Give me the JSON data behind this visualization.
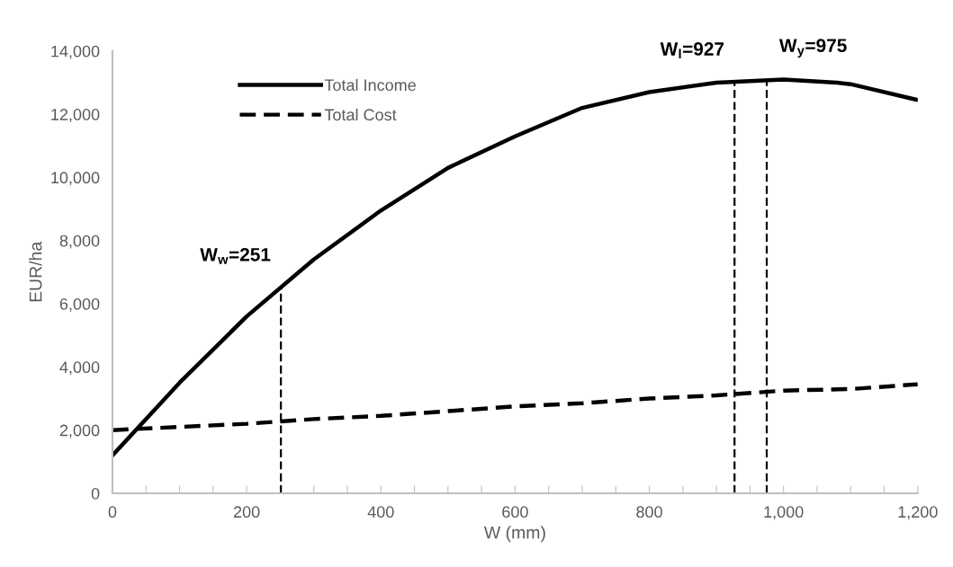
{
  "chart_data": {
    "type": "line",
    "xlabel": "W (mm)",
    "ylabel": "EUR/ha",
    "x": [
      0,
      100,
      200,
      300,
      400,
      500,
      600,
      700,
      800,
      900,
      1000,
      1080,
      1100,
      1200
    ],
    "series": [
      {
        "name": "Total Income",
        "color": "#000000",
        "line_style": "solid",
        "values": [
          1200,
          3500,
          5600,
          7400,
          8950,
          10300,
          11300,
          12200,
          12700,
          13000,
          13100,
          13000,
          12950,
          12450
        ]
      },
      {
        "name": "Total Cost",
        "color": "#000000",
        "line_style": "dashed",
        "values": [
          2000,
          2100,
          2200,
          2350,
          2450,
          2600,
          2750,
          2850,
          3000,
          3100,
          3250,
          3290,
          3300,
          3450
        ]
      }
    ],
    "xlim": [
      0,
      1200
    ],
    "ylim": [
      0,
      14000
    ],
    "xticks": [
      0,
      {
        "value": 50,
        "label": null
      },
      {
        "value": 100,
        "label": null
      },
      {
        "value": 150,
        "label": null
      },
      200,
      {
        "value": 250,
        "label": null
      },
      {
        "value": 300,
        "label": null
      },
      {
        "value": 350,
        "label": null
      },
      400,
      {
        "value": 450,
        "label": null
      },
      {
        "value": 500,
        "label": null
      },
      {
        "value": 550,
        "label": null
      },
      600,
      {
        "value": 650,
        "label": null
      },
      {
        "value": 700,
        "label": null
      },
      {
        "value": 750,
        "label": null
      },
      800,
      {
        "value": 850,
        "label": null
      },
      {
        "value": 900,
        "label": null
      },
      {
        "value": 950,
        "label": null
      },
      {
        "value": 1000,
        "label": "1,000"
      },
      {
        "value": 1050,
        "label": null
      },
      {
        "value": 1100,
        "label": null
      },
      {
        "value": 1150,
        "label": null
      },
      {
        "value": 1200,
        "label": "1,200"
      }
    ],
    "yticks": [
      0,
      {
        "value": 2000,
        "label": "2,000"
      },
      {
        "value": 4000,
        "label": "4,000"
      },
      {
        "value": 6000,
        "label": "6,000"
      },
      {
        "value": 8000,
        "label": "8,000"
      },
      {
        "value": 10000,
        "label": "10,000"
      },
      {
        "value": 12000,
        "label": "12,000"
      },
      {
        "value": 14000,
        "label": "14,000"
      }
    ],
    "ref_lines": [
      {
        "axis": "x",
        "value": 251,
        "label": "W$_{w}$=251",
        "color": "#000000",
        "line_style": "dashed"
      },
      {
        "axis": "x",
        "value": 927,
        "label": "W$_{l}$=927",
        "color": "#000000",
        "line_style": "dashed"
      },
      {
        "axis": "x",
        "value": 975,
        "label": "W$_{y}$=975",
        "color": "#000000",
        "line_style": "dashed"
      }
    ],
    "grid": false,
    "legend": "top left",
    "marker": "none"
  }
}
